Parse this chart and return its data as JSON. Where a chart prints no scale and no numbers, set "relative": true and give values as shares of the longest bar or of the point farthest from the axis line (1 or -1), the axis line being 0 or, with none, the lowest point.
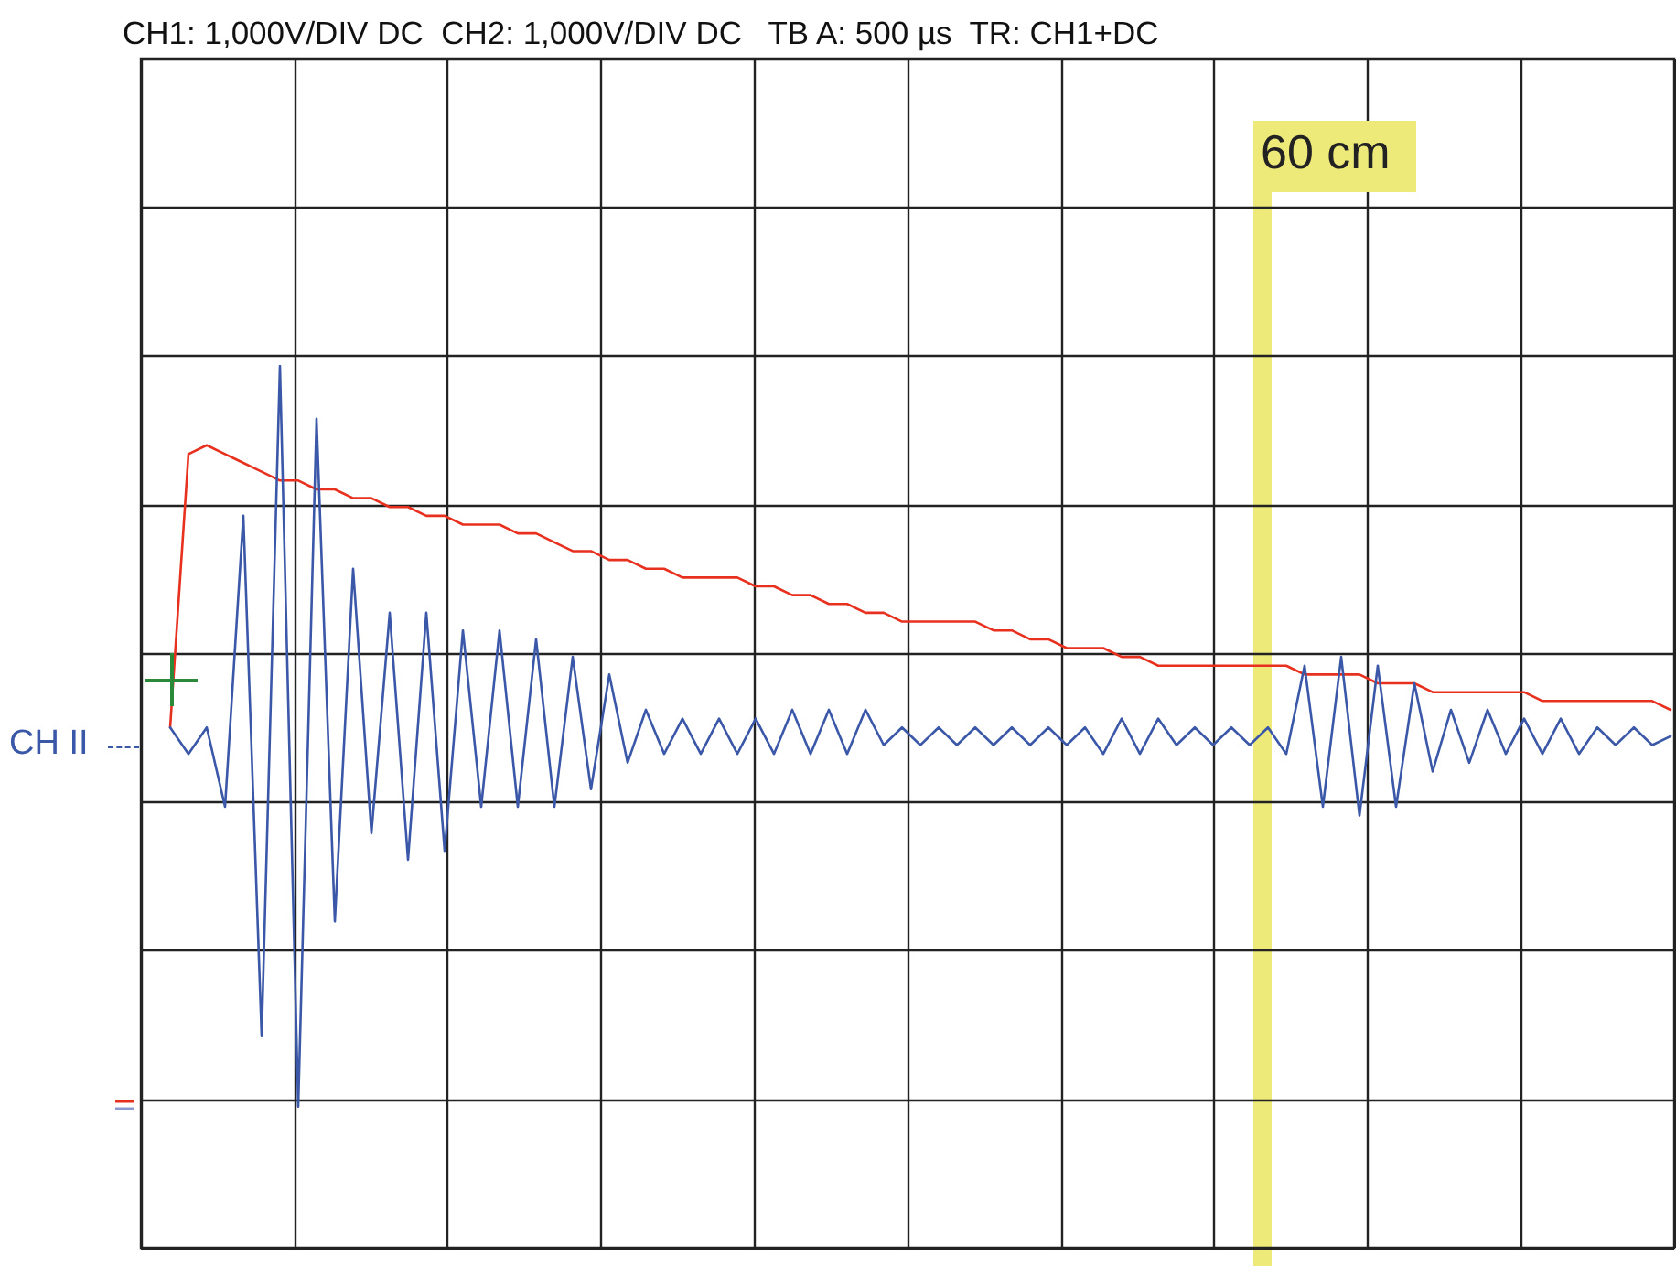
{
  "chart_data": {
    "type": "line",
    "title": "CH1: 1,000V/DIV DC  CH2: 1,000V/DIV DC   TB A: 500 µs  TR: CH1+DC",
    "relative": true,
    "categories": [
      null,
      null,
      null,
      null,
      null,
      null,
      null,
      null,
      null,
      null,
      null,
      null,
      null,
      null,
      null,
      null,
      null,
      null,
      null,
      null,
      null,
      null,
      null,
      null,
      null,
      null,
      null,
      null,
      null,
      null,
      null,
      null,
      null,
      null,
      null,
      null,
      null,
      null,
      null,
      null,
      null,
      null,
      null,
      null,
      null,
      null,
      null,
      null,
      null,
      null,
      null,
      null,
      null,
      null,
      null,
      null,
      null,
      null,
      null,
      null,
      null,
      null,
      null,
      null,
      null,
      null,
      null,
      null,
      null,
      null,
      null,
      null,
      null,
      null,
      null,
      null,
      null,
      null,
      null,
      null,
      null,
      null,
      null
    ],
    "grid": true,
    "marker": "none",
    "line_style": "solid",
    "annotations": [
      "CH II",
      "60 cm"
    ],
    "series": [
      {
        "color": "#e8301e",
        "values": [
          0.59,
          0.9,
          0.91,
          0.9,
          0.89,
          0.88,
          0.87,
          0.87,
          0.86,
          0.86,
          0.85,
          0.85,
          0.84,
          0.84,
          0.83,
          0.83,
          0.82,
          0.82,
          0.82,
          0.81,
          0.81,
          0.8,
          0.79,
          0.79,
          0.78,
          0.78,
          0.77,
          0.77,
          0.76,
          0.76,
          0.76,
          0.76,
          0.75,
          0.75,
          0.74,
          0.74,
          0.73,
          0.73,
          0.72,
          0.72,
          0.71,
          0.71,
          0.71,
          0.71,
          0.71,
          0.7,
          0.7,
          0.69,
          0.69,
          0.68,
          0.68,
          0.68,
          0.67,
          0.67,
          0.66,
          0.66,
          0.66,
          0.66,
          0.66,
          0.66,
          0.66,
          0.66,
          0.65,
          0.65,
          0.65,
          0.65,
          0.64,
          0.64,
          0.64,
          0.63,
          0.63,
          0.63,
          0.63,
          0.63,
          0.63,
          0.62,
          0.62,
          0.62,
          0.62,
          0.62,
          0.62,
          0.62,
          0.61
        ]
      },
      {
        "color": "#3a57a8",
        "values": [
          0.59,
          0.56,
          0.59,
          0.5,
          0.83,
          0.24,
          1.0,
          0.16,
          0.94,
          0.37,
          0.77,
          0.47,
          0.72,
          0.44,
          0.72,
          0.45,
          0.7,
          0.5,
          0.7,
          0.5,
          0.69,
          0.5,
          0.67,
          0.52,
          0.65,
          0.55,
          0.61,
          0.56,
          0.6,
          0.56,
          0.6,
          0.56,
          0.6,
          0.56,
          0.61,
          0.56,
          0.61,
          0.56,
          0.61,
          0.57,
          0.59,
          0.57,
          0.59,
          0.57,
          0.59,
          0.57,
          0.59,
          0.57,
          0.59,
          0.57,
          0.59,
          0.56,
          0.6,
          0.56,
          0.6,
          0.57,
          0.59,
          0.57,
          0.59,
          0.57,
          0.59,
          0.56,
          0.66,
          0.5,
          0.67,
          0.49,
          0.66,
          0.5,
          0.64,
          0.54,
          0.61,
          0.55,
          0.61,
          0.56,
          0.6,
          0.56,
          0.6,
          0.56,
          0.59,
          0.57,
          0.59,
          0.57,
          0.58
        ]
      }
    ]
  }
}
